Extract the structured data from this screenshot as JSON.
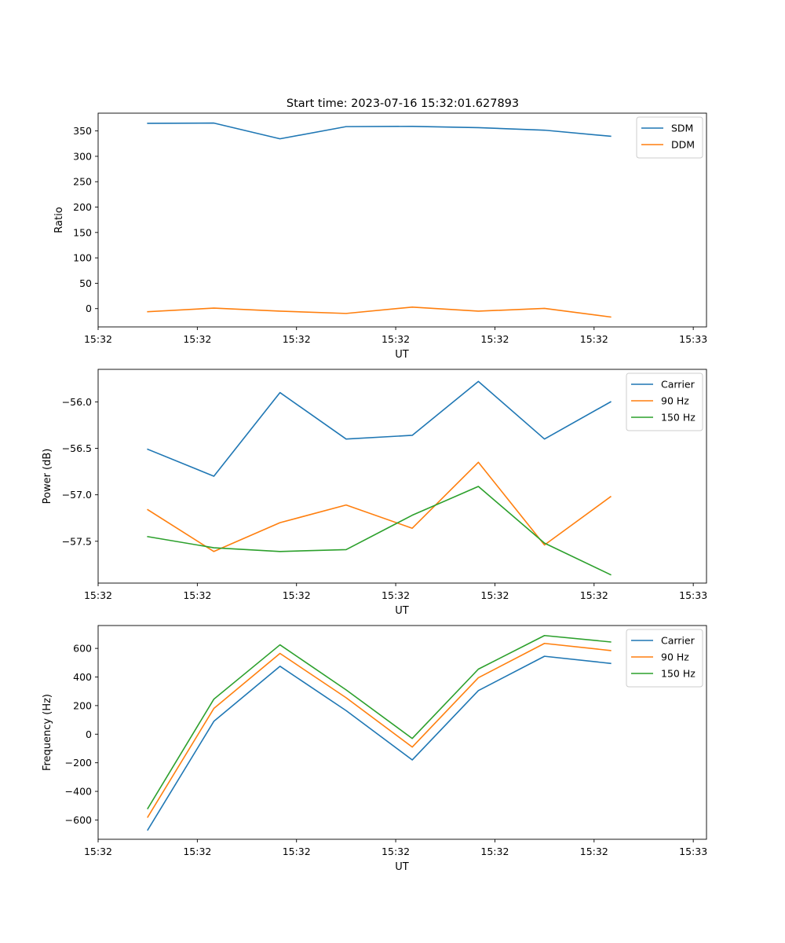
{
  "figure_title": "Start time: 2023-07-16 15:32:01.627893",
  "colors": {
    "blue": "#1f77b4",
    "orange": "#ff7f0e",
    "green": "#2ca02c"
  },
  "chart_data": [
    {
      "type": "line",
      "title": "Start time: 2023-07-16 15:32:01.627893",
      "xlabel": "UT",
      "ylabel": "Ratio",
      "x": [
        0,
        1,
        2,
        3,
        4,
        5,
        6,
        7
      ],
      "xlim": [
        -0.75,
        8.45
      ],
      "ylim": [
        -36,
        385
      ],
      "yticks": [
        0,
        50,
        100,
        150,
        200,
        250,
        300,
        350
      ],
      "ytick_labels": [
        "0",
        "50",
        "100",
        "150",
        "200",
        "250",
        "300",
        "350"
      ],
      "xtick_positions": [
        -0.75,
        0.75,
        2.25,
        3.75,
        5.25,
        6.75,
        8.25
      ],
      "xtick_labels": [
        "15:32",
        "15:32",
        "15:32",
        "15:32",
        "15:32",
        "15:32",
        "15:33"
      ],
      "legend_position": "top-right",
      "series": [
        {
          "name": "SDM",
          "color": "#1f77b4",
          "values": [
            365,
            365.5,
            334.5,
            358.5,
            359,
            356.5,
            351.5,
            339.5
          ]
        },
        {
          "name": "DDM",
          "color": "#ff7f0e",
          "values": [
            -6,
            1,
            -5,
            -9.5,
            3,
            -5,
            0.5,
            -16.5
          ]
        }
      ]
    },
    {
      "type": "line",
      "title": "",
      "xlabel": "UT",
      "ylabel": "Power (dB)",
      "x": [
        0,
        1,
        2,
        3,
        4,
        5,
        6,
        7
      ],
      "xlim": [
        -0.75,
        8.45
      ],
      "ylim": [
        -57.95,
        -55.65
      ],
      "yticks": [
        -57.5,
        -57.0,
        -56.5,
        -56.0
      ],
      "ytick_labels": [
        "−57.5",
        "−57.0",
        "−56.5",
        "−56.0"
      ],
      "xtick_positions": [
        -0.75,
        0.75,
        2.25,
        3.75,
        5.25,
        6.75,
        8.25
      ],
      "xtick_labels": [
        "15:32",
        "15:32",
        "15:32",
        "15:32",
        "15:32",
        "15:32",
        "15:33"
      ],
      "legend_position": "top-right",
      "series": [
        {
          "name": "Carrier",
          "color": "#1f77b4",
          "values": [
            -56.51,
            -56.8,
            -55.9,
            -56.4,
            -56.36,
            -55.78,
            -56.4,
            -56.0
          ]
        },
        {
          "name": "90 Hz",
          "color": "#ff7f0e",
          "values": [
            -57.16,
            -57.61,
            -57.3,
            -57.11,
            -57.36,
            -56.65,
            -57.54,
            -57.02
          ]
        },
        {
          "name": "150 Hz",
          "color": "#2ca02c",
          "values": [
            -57.45,
            -57.57,
            -57.61,
            -57.59,
            -57.22,
            -56.91,
            -57.52,
            -57.86
          ]
        }
      ]
    },
    {
      "type": "line",
      "title": "",
      "xlabel": "UT",
      "ylabel": "Frequency (Hz)",
      "x": [
        0,
        1,
        2,
        3,
        4,
        5,
        6,
        7
      ],
      "xlim": [
        -0.75,
        8.45
      ],
      "ylim": [
        -735,
        760
      ],
      "yticks": [
        -600,
        -400,
        -200,
        0,
        200,
        400,
        600
      ],
      "ytick_labels": [
        "−600",
        "−400",
        "−200",
        "0",
        "200",
        "400",
        "600"
      ],
      "xtick_positions": [
        -0.75,
        0.75,
        2.25,
        3.75,
        5.25,
        6.75,
        8.25
      ],
      "xtick_labels": [
        "15:32",
        "15:32",
        "15:32",
        "15:32",
        "15:32",
        "15:32",
        "15:33"
      ],
      "legend_position": "top-right",
      "series": [
        {
          "name": "Carrier",
          "color": "#1f77b4",
          "values": [
            -670,
            90,
            475,
            165,
            -180,
            305,
            545,
            495
          ]
        },
        {
          "name": "90 Hz",
          "color": "#ff7f0e",
          "values": [
            -580,
            180,
            565,
            255,
            -90,
            395,
            635,
            585
          ]
        },
        {
          "name": "150 Hz",
          "color": "#2ca02c",
          "values": [
            -520,
            245,
            625,
            310,
            -30,
            455,
            690,
            645
          ]
        }
      ]
    }
  ]
}
